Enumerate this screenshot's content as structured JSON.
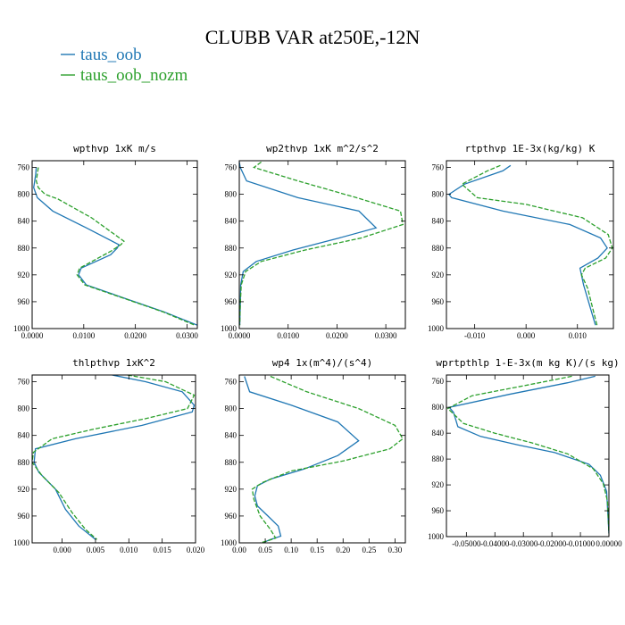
{
  "figure": {
    "title": "CLUBB VAR at250E,-12N",
    "legend": [
      {
        "label": "taus_oob",
        "color": "#1f77b4",
        "dash": "solid"
      },
      {
        "label": "taus_oob_nozm",
        "color": "#2ca02c",
        "dash": "dashed"
      }
    ]
  },
  "chart_data": [
    {
      "type": "line",
      "title": "wpthvp  1xK m/s",
      "xlim": [
        0.0,
        0.032
      ],
      "ylim": [
        1000,
        750
      ],
      "xticks": [
        0.0,
        0.01,
        0.02,
        0.03
      ],
      "xtick_labels": [
        "0.0000",
        "0.0100",
        "0.0200",
        "0.0300"
      ],
      "yticks": [
        760,
        800,
        840,
        880,
        920,
        960,
        1000
      ],
      "series": [
        {
          "name": "taus_oob",
          "x": [
            0.0008,
            0.0007,
            0.0005,
            0.0003,
            0.001,
            0.004,
            0.0105,
            0.0168,
            0.0165,
            0.0152,
            0.0095,
            0.009,
            0.0105,
            0.018,
            0.0255,
            0.032
          ],
          "y": [
            760,
            770,
            780,
            790,
            805,
            825,
            850,
            875,
            880,
            890,
            910,
            920,
            935,
            955,
            975,
            995
          ]
        },
        {
          "name": "taus_oob_nozm",
          "x": [
            0.0012,
            0.001,
            0.0008,
            0.0012,
            0.0025,
            0.005,
            0.0115,
            0.0178,
            0.0172,
            0.0152,
            0.0092,
            0.0087,
            0.0102,
            0.0178,
            0.0253,
            0.0315
          ],
          "y": [
            760,
            770,
            780,
            790,
            800,
            807,
            835,
            870,
            875,
            885,
            910,
            920,
            935,
            955,
            975,
            995
          ]
        }
      ]
    },
    {
      "type": "line",
      "title": "wp2thvp  1xK m^2/s^2",
      "xlim": [
        0.0,
        0.034
      ],
      "ylim": [
        1000,
        750
      ],
      "xticks": [
        0.0,
        0.01,
        0.02,
        0.03
      ],
      "xtick_labels": [
        "0.0000",
        "0.0100",
        "0.0200",
        "0.0300"
      ],
      "yticks": [
        760,
        800,
        840,
        880,
        920,
        960,
        1000
      ],
      "series": [
        {
          "name": "taus_oob",
          "x": [
            0.0,
            0.0002,
            0.0015,
            0.012,
            0.0245,
            0.028,
            0.0205,
            0.011,
            0.0035,
            0.0008,
            0.0003,
            0.0002,
            0.0001
          ],
          "y": [
            752,
            760,
            780,
            805,
            825,
            850,
            865,
            883,
            900,
            915,
            935,
            965,
            995
          ]
        },
        {
          "name": "taus_oob_nozm",
          "x": [
            0.0045,
            0.003,
            0.012,
            0.024,
            0.033,
            0.0335,
            0.025,
            0.0135,
            0.0045,
            0.0013,
            0.0004,
            0.0002,
            0.0001
          ],
          "y": [
            752,
            760,
            780,
            805,
            825,
            845,
            865,
            883,
            900,
            915,
            935,
            965,
            995
          ]
        }
      ]
    },
    {
      "type": "line",
      "title": "rtpthvp  1E-3x(kg/kg) K",
      "xlim": [
        -0.0155,
        0.017
      ],
      "ylim": [
        1000,
        750
      ],
      "xticks": [
        -0.01,
        0.0,
        0.01
      ],
      "xtick_labels": [
        "-0.010",
        "0.000",
        "0.010"
      ],
      "yticks": [
        760,
        800,
        840,
        880,
        920,
        960,
        1000
      ],
      "series": [
        {
          "name": "taus_oob",
          "x": [
            -0.003,
            -0.0045,
            -0.012,
            -0.015,
            -0.0145,
            -0.0045,
            0.0085,
            0.0145,
            0.0158,
            0.014,
            0.0105,
            0.0112,
            0.0135
          ],
          "y": [
            757,
            765,
            785,
            800,
            805,
            825,
            845,
            865,
            880,
            895,
            910,
            935,
            995
          ]
        },
        {
          "name": "taus_oob_nozm",
          "x": [
            -0.005,
            -0.0075,
            -0.0125,
            -0.0095,
            0.0,
            0.011,
            0.016,
            0.0168,
            0.0155,
            0.0115,
            0.0108,
            0.012,
            0.0138
          ],
          "y": [
            757,
            765,
            785,
            805,
            815,
            835,
            860,
            880,
            895,
            910,
            920,
            940,
            995
          ]
        }
      ]
    },
    {
      "type": "line",
      "title": "thlpthvp  1xK^2",
      "xlim": [
        -0.0045,
        0.02
      ],
      "ylim": [
        1000,
        750
      ],
      "xticks": [
        0.0,
        0.005,
        0.01,
        0.015,
        0.02
      ],
      "xtick_labels": [
        "0.000",
        "0.005",
        "0.010",
        "0.015",
        "0.020"
      ],
      "yticks": [
        760,
        800,
        840,
        880,
        920,
        960,
        1000
      ],
      "series": [
        {
          "name": "taus_oob",
          "x": [
            0.0075,
            0.0125,
            0.018,
            0.0198,
            0.0195,
            0.012,
            0.002,
            -0.004,
            -0.0042,
            -0.0035,
            -0.001,
            0.0005,
            0.0025,
            0.005
          ],
          "y": [
            750,
            760,
            775,
            795,
            805,
            825,
            845,
            860,
            880,
            895,
            920,
            950,
            975,
            995
          ]
        },
        {
          "name": "taus_oob_nozm",
          "x": [
            0.0098,
            0.0155,
            0.0198,
            0.0188,
            0.0125,
            0.005,
            -0.0015,
            -0.0043,
            -0.0045,
            -0.003,
            -0.0005,
            0.0015,
            0.0035,
            0.0052
          ],
          "y": [
            750,
            760,
            780,
            800,
            815,
            830,
            845,
            865,
            880,
            900,
            925,
            955,
            980,
            995
          ]
        }
      ]
    },
    {
      "type": "line",
      "title": "wp4  1x(m^4)/(s^4)",
      "xlim": [
        0.0,
        0.32
      ],
      "ylim": [
        1000,
        750
      ],
      "xticks": [
        0.0,
        0.05,
        0.1,
        0.15,
        0.2,
        0.25,
        0.3
      ],
      "xtick_labels": [
        "0.00",
        "0.05",
        "0.10",
        "0.15",
        "0.20",
        "0.25",
        "0.30"
      ],
      "yticks": [
        760,
        800,
        840,
        880,
        920,
        960,
        1000
      ],
      "series": [
        {
          "name": "taus_oob",
          "x": [
            0.01,
            0.02,
            0.1,
            0.19,
            0.23,
            0.19,
            0.125,
            0.06,
            0.035,
            0.03,
            0.035,
            0.055,
            0.075,
            0.08,
            0.06,
            0.045
          ],
          "y": [
            752,
            775,
            795,
            820,
            848,
            870,
            890,
            905,
            915,
            930,
            945,
            960,
            975,
            990,
            995,
            1000
          ]
        },
        {
          "name": "taus_oob_nozm",
          "x": [
            0.06,
            0.13,
            0.23,
            0.3,
            0.315,
            0.29,
            0.2,
            0.1,
            0.045,
            0.025,
            0.028,
            0.04,
            0.06,
            0.07,
            0.055,
            0.04
          ],
          "y": [
            752,
            775,
            800,
            825,
            845,
            860,
            878,
            893,
            910,
            920,
            935,
            960,
            980,
            993,
            997,
            1000
          ]
        }
      ]
    },
    {
      "type": "line",
      "title": "wprtpthlp  1-E-3x(m kg K)/(s kg)",
      "xlim": [
        -0.057,
        0.0
      ],
      "ylim": [
        1000,
        750
      ],
      "xticks": [
        -0.05,
        -0.04,
        -0.03,
        -0.02,
        -0.01,
        0.0
      ],
      "xtick_labels": [
        "-0.05000",
        "-0.04000",
        "-0.03000",
        "-0.02000",
        "-0.01000",
        "0.00000"
      ],
      "yticks": [
        760,
        800,
        840,
        880,
        920,
        960,
        1000
      ],
      "series": [
        {
          "name": "taus_oob",
          "x": [
            -0.0048,
            -0.0145,
            -0.035,
            -0.056,
            -0.0545,
            -0.053,
            -0.045,
            -0.032,
            -0.019,
            -0.007,
            -0.003,
            -0.0008,
            0.0
          ],
          "y": [
            752,
            762,
            780,
            800,
            808,
            830,
            845,
            858,
            870,
            888,
            905,
            930,
            995
          ]
        },
        {
          "name": "taus_oob_nozm",
          "x": [
            -0.013,
            -0.028,
            -0.048,
            -0.0565,
            -0.051,
            -0.04,
            -0.027,
            -0.0145,
            -0.0055,
            -0.002,
            -0.0005,
            0.0
          ],
          "y": [
            752,
            765,
            782,
            802,
            825,
            840,
            855,
            872,
            895,
            918,
            945,
            995
          ]
        }
      ]
    }
  ]
}
